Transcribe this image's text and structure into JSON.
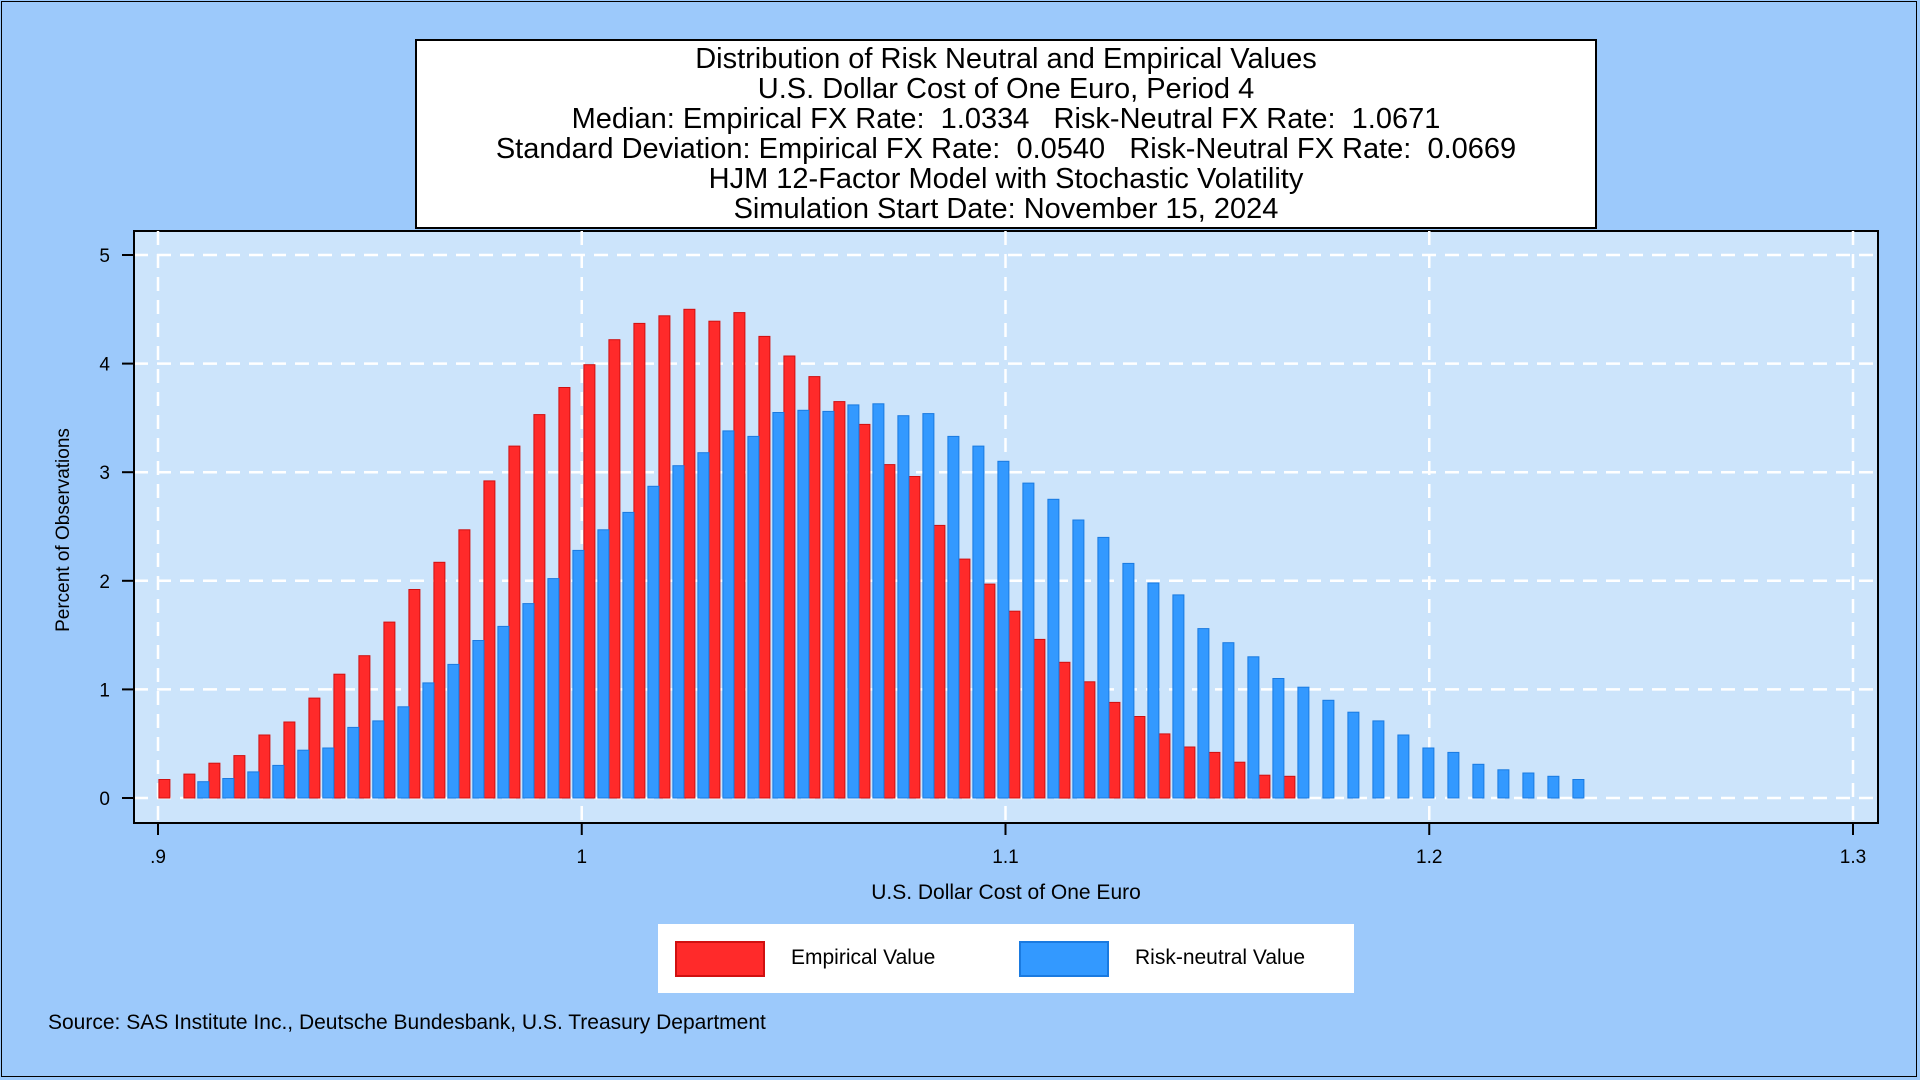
{
  "chart_data": {
    "type": "bar",
    "title_lines": [
      "Distribution of Risk Neutral and Empirical Values",
      "U.S. Dollar Cost of One Euro, Period 4",
      "Median: Empirical FX Rate:  1.0334   Risk-Neutral FX Rate:  1.0671",
      "Standard Deviation: Empirical FX Rate:  0.0540   Risk-Neutral FX Rate:  0.0669",
      "HJM 12-Factor Model with Stochastic Volatility",
      "Simulation Start Date: November 15, 2024"
    ],
    "xlabel": "U.S. Dollar Cost of One Euro",
    "ylabel": "Percent of Observations",
    "xlim": [
      0.9,
      1.3
    ],
    "ylim": [
      0,
      5
    ],
    "x_ticks": [
      0.9,
      1.0,
      1.1,
      1.2,
      1.3
    ],
    "x_tick_labels": [
      ".9",
      "1",
      "1.1",
      "1.2",
      "1.3"
    ],
    "y_ticks": [
      0,
      1,
      2,
      3,
      4,
      5
    ],
    "y_tick_labels": [
      "0",
      "1",
      "2",
      "3",
      "4",
      "5"
    ],
    "grid": true,
    "legend_position": "bottom-center",
    "series": [
      {
        "name": "Empirical Value",
        "color": "#ff2a2a",
        "x_start": 0.9015,
        "bin_width": 0.0059,
        "values": [
          0.17,
          0.22,
          0.32,
          0.39,
          0.58,
          0.7,
          0.92,
          1.14,
          1.31,
          1.62,
          1.92,
          2.17,
          2.47,
          2.92,
          3.24,
          3.53,
          3.78,
          3.99,
          4.22,
          4.37,
          4.44,
          4.5,
          4.39,
          4.47,
          4.25,
          4.07,
          3.88,
          3.65,
          3.44,
          3.07,
          2.96,
          2.51,
          2.2,
          1.97,
          1.72,
          1.46,
          1.25,
          1.07,
          0.88,
          0.75,
          0.59,
          0.47,
          0.42,
          0.33,
          0.21,
          0.2
        ]
      },
      {
        "name": "Risk-neutral Value",
        "color": "#3399ff",
        "x_start": 0.9107,
        "bin_width": 0.0059,
        "values": [
          0.15,
          0.18,
          0.24,
          0.3,
          0.44,
          0.46,
          0.65,
          0.71,
          0.84,
          1.06,
          1.23,
          1.45,
          1.58,
          1.79,
          2.02,
          2.28,
          2.47,
          2.63,
          2.87,
          3.06,
          3.18,
          3.38,
          3.33,
          3.55,
          3.57,
          3.56,
          3.62,
          3.63,
          3.52,
          3.54,
          3.33,
          3.24,
          3.1,
          2.9,
          2.75,
          2.56,
          2.4,
          2.16,
          1.98,
          1.87,
          1.56,
          1.43,
          1.3,
          1.1,
          1.02,
          0.9,
          0.79,
          0.71,
          0.58,
          0.46,
          0.42,
          0.31,
          0.26,
          0.23,
          0.2,
          0.17
        ]
      }
    ]
  },
  "legend": {
    "empirical_label": "Empirical Value",
    "risk_neutral_label": "Risk-neutral Value"
  },
  "source_note": "Source: SAS Institute Inc., Deutsche Bundesbank, U.S. Treasury Department",
  "colors": {
    "background": "#9cc9fb",
    "plot_area": "#cce4fb",
    "empirical": "#ff2a2a",
    "risk_neutral": "#3399ff"
  }
}
